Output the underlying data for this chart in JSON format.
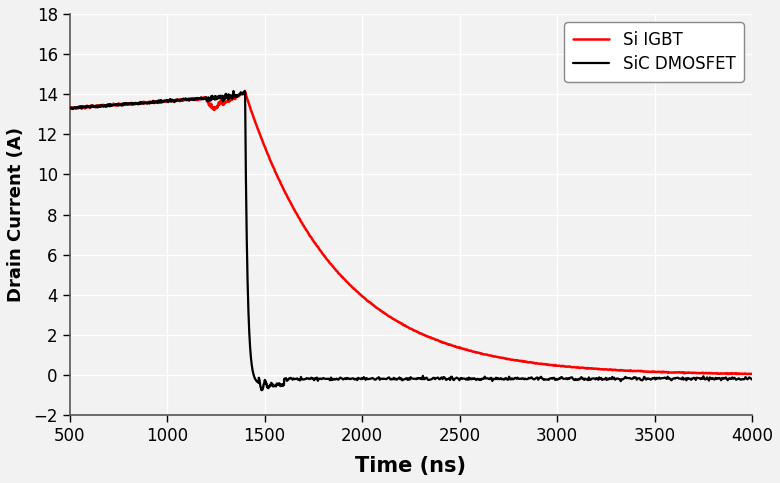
{
  "title": "",
  "xlabel": "Time (ns)",
  "ylabel": "Drain Current (A)",
  "xlim": [
    500,
    4000
  ],
  "ylim": [
    -2,
    18
  ],
  "yticks": [
    -2,
    0,
    2,
    4,
    6,
    8,
    10,
    12,
    14,
    16,
    18
  ],
  "xticks": [
    500,
    1000,
    1500,
    2000,
    2500,
    3000,
    3500,
    4000
  ],
  "igbt_color": "#ff0000",
  "mosfet_color": "#000000",
  "legend_labels": [
    "Si IGBT",
    "SiC DMOSFET"
  ],
  "background_color": "#f2f2f2",
  "grid_color": "#ffffff",
  "igbt_flat_start": 500,
  "igbt_flat_end": 1200,
  "igbt_flat_level": 13.3,
  "igbt_rise_end": 1400,
  "igbt_peak": 14.1,
  "igbt_decay_tau": 470,
  "igbt_decay_start": 1400,
  "mosfet_flat_level": 13.3,
  "mosfet_drop_start": 1400,
  "mosfet_drop_end": 1470,
  "mosfet_undershoot": -0.5,
  "mosfet_settle": -0.18
}
